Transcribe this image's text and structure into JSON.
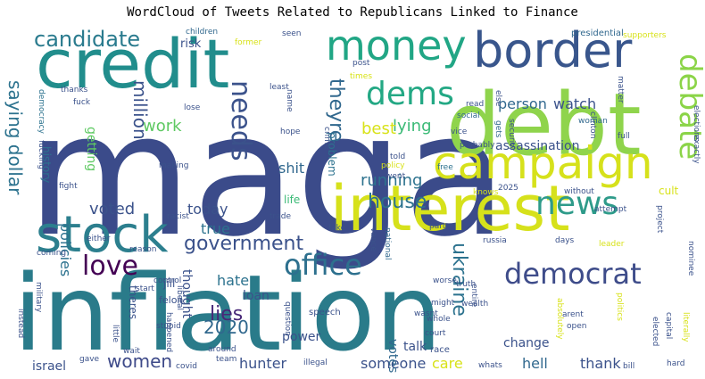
{
  "chart_data": {
    "type": "wordcloud",
    "title": "WordCloud of Tweets Related to Republicans Linked to Finance",
    "words": [
      {
        "text": "maga",
        "size": 190,
        "color": "#3b4b8a"
      },
      {
        "text": "inflation",
        "size": 118,
        "color": "#2a7b8a"
      },
      {
        "text": "debt",
        "size": 96,
        "color": "#8fd44c"
      },
      {
        "text": "credit",
        "size": 76,
        "color": "#218d8c"
      },
      {
        "text": "interest",
        "size": 70,
        "color": "#d6e11b"
      },
      {
        "text": "stock",
        "size": 56,
        "color": "#2c7f8e"
      },
      {
        "text": "border",
        "size": 54,
        "color": "#39568c"
      },
      {
        "text": "campaign",
        "size": 50,
        "color": "#d6e11b"
      },
      {
        "text": "money",
        "size": 46,
        "color": "#21a685"
      },
      {
        "text": "dems",
        "size": 36,
        "color": "#23a884"
      },
      {
        "text": "news",
        "size": 36,
        "color": "#2e9b8a"
      },
      {
        "text": "debate",
        "size": 34,
        "color": "#8bd448"
      },
      {
        "text": "democrat",
        "size": 32,
        "color": "#3e4c8a"
      },
      {
        "text": "office",
        "size": 32,
        "color": "#2d708e"
      },
      {
        "text": "needs",
        "size": 30,
        "color": "#3b528b"
      },
      {
        "text": "love",
        "size": 30,
        "color": "#440154"
      },
      {
        "text": "candidate",
        "size": 24,
        "color": "#2a7b8e"
      },
      {
        "text": "government",
        "size": 22,
        "color": "#3b528b"
      },
      {
        "text": "theyre",
        "size": 22,
        "color": "#31688e"
      },
      {
        "text": "ukraine",
        "size": 22,
        "color": "#2c728e"
      },
      {
        "text": "house",
        "size": 22,
        "color": "#2c728e"
      },
      {
        "text": "lies",
        "size": 22,
        "color": "#482878"
      },
      {
        "text": "women",
        "size": 20,
        "color": "#3e4a89"
      },
      {
        "text": "2020",
        "size": 20,
        "color": "#31688e"
      },
      {
        "text": "saying dollar",
        "size": 20,
        "color": "#2c728e"
      },
      {
        "text": "million",
        "size": 20,
        "color": "#3b528b"
      },
      {
        "text": "voted",
        "size": 18,
        "color": "#3b528b"
      },
      {
        "text": "lying",
        "size": 18,
        "color": "#3aba76"
      },
      {
        "text": "person",
        "size": 16,
        "color": "#31688e"
      },
      {
        "text": "watch",
        "size": 16,
        "color": "#3b528b"
      },
      {
        "text": "best",
        "size": 18,
        "color": "#d8e219"
      },
      {
        "text": "work",
        "size": 18,
        "color": "#5ec962"
      },
      {
        "text": "shit",
        "size": 16,
        "color": "#31688e"
      },
      {
        "text": "today",
        "size": 16,
        "color": "#3b528b"
      },
      {
        "text": "true",
        "size": 16,
        "color": "#2c728e"
      },
      {
        "text": "hate",
        "size": 16,
        "color": "#2c728e"
      },
      {
        "text": "loan",
        "size": 14,
        "color": "#3b528b"
      },
      {
        "text": "running",
        "size": 18,
        "color": "#2c728e"
      },
      {
        "text": "hunter",
        "size": 16,
        "color": "#3b528b"
      },
      {
        "text": "someone",
        "size": 16,
        "color": "#3b528b"
      },
      {
        "text": "care",
        "size": 16,
        "color": "#d8e219"
      },
      {
        "text": "hell",
        "size": 16,
        "color": "#31688e"
      },
      {
        "text": "thank",
        "size": 16,
        "color": "#3b528b"
      },
      {
        "text": "talk",
        "size": 14,
        "color": "#3b528b"
      },
      {
        "text": "israel",
        "size": 14,
        "color": "#3b528b"
      },
      {
        "text": "policies",
        "size": 16,
        "color": "#2c728e"
      },
      {
        "text": "power",
        "size": 14,
        "color": "#3b528b"
      },
      {
        "text": "change",
        "size": 14,
        "color": "#3b528b"
      },
      {
        "text": "votes",
        "size": 14,
        "color": "#31688e"
      },
      {
        "text": "thought",
        "size": 14,
        "color": "#3b528b"
      },
      {
        "text": "getting",
        "size": 14,
        "color": "#5ec962"
      },
      {
        "text": "assassination",
        "size": 14,
        "color": "#3b528b"
      },
      {
        "text": "risk",
        "size": 13,
        "color": "#3b528b"
      },
      {
        "text": "problem",
        "size": 12,
        "color": "#2c728e"
      },
      {
        "text": "history",
        "size": 12,
        "color": "#2c728e"
      },
      {
        "text": "life",
        "size": 12,
        "color": "#3aba76"
      },
      {
        "text": "cult",
        "size": 12,
        "color": "#d8e219"
      },
      {
        "text": "jill",
        "size": 12,
        "color": "#3b528b"
      },
      {
        "text": "felon",
        "size": 11,
        "color": "#3b528b"
      },
      {
        "text": "theres",
        "size": 12,
        "color": "#3b528b"
      },
      {
        "text": "children",
        "size": 9,
        "color": "#31688e"
      },
      {
        "text": "former",
        "size": 9,
        "color": "#d8e219"
      },
      {
        "text": "seen",
        "size": 9,
        "color": "#3b528b"
      },
      {
        "text": "presidential",
        "size": 10,
        "color": "#31688e"
      },
      {
        "text": "supporters",
        "size": 9,
        "color": "#d8e219"
      },
      {
        "text": "thanks",
        "size": 9,
        "color": "#3b528b"
      },
      {
        "text": "fuck",
        "size": 9,
        "color": "#3b528b"
      },
      {
        "text": "democracy",
        "size": 9,
        "color": "#2c728e"
      },
      {
        "text": "fucking",
        "size": 9,
        "color": "#3b528b"
      },
      {
        "text": "lose",
        "size": 9,
        "color": "#3b528b"
      },
      {
        "text": "least",
        "size": 9,
        "color": "#3b528b"
      },
      {
        "text": "post",
        "size": 9,
        "color": "#3b528b"
      },
      {
        "text": "times",
        "size": 9,
        "color": "#d8e219"
      },
      {
        "text": "read",
        "size": 9,
        "color": "#3b528b"
      },
      {
        "text": "social",
        "size": 9,
        "color": "#31688e"
      },
      {
        "text": "matter",
        "size": 9,
        "color": "#3b528b"
      },
      {
        "text": "clinton",
        "size": 9,
        "color": "#3b528b"
      },
      {
        "text": "elections",
        "size": 9,
        "color": "#3b528b"
      },
      {
        "text": "exactly",
        "size": 9,
        "color": "#3b528b"
      },
      {
        "text": "woman",
        "size": 9,
        "color": "#31688e"
      },
      {
        "text": "else",
        "size": 9,
        "color": "#3b528b"
      },
      {
        "text": "gets",
        "size": 9,
        "color": "#31688e"
      },
      {
        "text": "security",
        "size": 9,
        "color": "#3b528b"
      },
      {
        "text": "hope",
        "size": 9,
        "color": "#3b528b"
      },
      {
        "text": "crime",
        "size": 9,
        "color": "#3b528b"
      },
      {
        "text": "vice",
        "size": 9,
        "color": "#3b528b"
      },
      {
        "text": "probably",
        "size": 9,
        "color": "#3b528b"
      },
      {
        "text": "full",
        "size": 9,
        "color": "#3b528b"
      },
      {
        "text": "told",
        "size": 9,
        "color": "#3b528b"
      },
      {
        "text": "policy",
        "size": 9,
        "color": "#d8e219"
      },
      {
        "text": "went",
        "size": 9,
        "color": "#3b528b"
      },
      {
        "text": "free",
        "size": 9,
        "color": "#2c728e"
      },
      {
        "text": "making",
        "size": 9,
        "color": "#3b528b"
      },
      {
        "text": "fight",
        "size": 9,
        "color": "#3b528b"
      },
      {
        "text": "knows",
        "size": 9,
        "color": "#d8e219"
      },
      {
        "text": "2025",
        "size": 9,
        "color": "#3b528b"
      },
      {
        "text": "without",
        "size": 9,
        "color": "#3b528b"
      },
      {
        "text": "attempt",
        "size": 9,
        "color": "#3b528b"
      },
      {
        "text": "project",
        "size": 9,
        "color": "#3b528b"
      },
      {
        "text": "racist",
        "size": 9,
        "color": "#3b528b"
      },
      {
        "text": "trade",
        "size": 9,
        "color": "#3b528b"
      },
      {
        "text": "fake",
        "size": 9,
        "color": "#3b528b"
      },
      {
        "text": "vance",
        "size": 9,
        "color": "#3b528b"
      },
      {
        "text": "national",
        "size": 9,
        "color": "#31688e"
      },
      {
        "text": "part",
        "size": 9,
        "color": "#3b528b"
      },
      {
        "text": "russia",
        "size": 9,
        "color": "#3b528b"
      },
      {
        "text": "days",
        "size": 9,
        "color": "#3b528b"
      },
      {
        "text": "leader",
        "size": 9,
        "color": "#d8e219"
      },
      {
        "text": "nominee",
        "size": 9,
        "color": "#3b528b"
      },
      {
        "text": "coming",
        "size": 9,
        "color": "#3b528b"
      },
      {
        "text": "either",
        "size": 9,
        "color": "#3b528b"
      },
      {
        "text": "reason",
        "size": 9,
        "color": "#3b528b"
      },
      {
        "text": "start",
        "size": 9,
        "color": "#3b528b"
      },
      {
        "text": "control",
        "size": 9,
        "color": "#3b528b"
      },
      {
        "text": "worse",
        "size": 9,
        "color": "#3b528b"
      },
      {
        "text": "truth",
        "size": 9,
        "color": "#3b528b"
      },
      {
        "text": "entire",
        "size": 9,
        "color": "#3b528b"
      },
      {
        "text": "might",
        "size": 9,
        "color": "#3b528b"
      },
      {
        "text": "wealth",
        "size": 9,
        "color": "#3b528b"
      },
      {
        "text": "military",
        "size": 9,
        "color": "#3b528b"
      },
      {
        "text": "instead",
        "size": 9,
        "color": "#3b528b"
      },
      {
        "text": "little",
        "size": 9,
        "color": "#3b528b"
      },
      {
        "text": "stupid",
        "size": 9,
        "color": "#3b528b"
      },
      {
        "text": "happened",
        "size": 9,
        "color": "#3b528b"
      },
      {
        "text": "liberal",
        "size": 9,
        "color": "#3b528b"
      },
      {
        "text": "question",
        "size": 9,
        "color": "#3b528b"
      },
      {
        "text": "speech",
        "size": 10,
        "color": "#3b528b"
      },
      {
        "text": "wasnt",
        "size": 9,
        "color": "#3b528b"
      },
      {
        "text": "whole",
        "size": 9,
        "color": "#3b528b"
      },
      {
        "text": "court",
        "size": 9,
        "color": "#3b528b"
      },
      {
        "text": "race",
        "size": 10,
        "color": "#3b528b"
      },
      {
        "text": "absolutely",
        "size": 9,
        "color": "#d8e219"
      },
      {
        "text": "arent",
        "size": 9,
        "color": "#3b528b"
      },
      {
        "text": "open",
        "size": 9,
        "color": "#3b528b"
      },
      {
        "text": "politics",
        "size": 9,
        "color": "#d8e219"
      },
      {
        "text": "elected",
        "size": 9,
        "color": "#3b528b"
      },
      {
        "text": "capital",
        "size": 9,
        "color": "#3b528b"
      },
      {
        "text": "literally",
        "size": 9,
        "color": "#d8e219"
      },
      {
        "text": "wait",
        "size": 9,
        "color": "#3b528b"
      },
      {
        "text": "gave",
        "size": 9,
        "color": "#3b528b"
      },
      {
        "text": "around",
        "size": 9,
        "color": "#3b528b"
      },
      {
        "text": "team",
        "size": 9,
        "color": "#3b528b"
      },
      {
        "text": "covid",
        "size": 9,
        "color": "#3b528b"
      },
      {
        "text": "illegal",
        "size": 9,
        "color": "#3b528b"
      },
      {
        "text": "whats",
        "size": 9,
        "color": "#3b528b"
      },
      {
        "text": "bill",
        "size": 9,
        "color": "#3b528b"
      },
      {
        "text": "hard",
        "size": 9,
        "color": "#3b528b"
      },
      {
        "text": "name",
        "size": 9,
        "color": "#3b528b"
      }
    ]
  }
}
